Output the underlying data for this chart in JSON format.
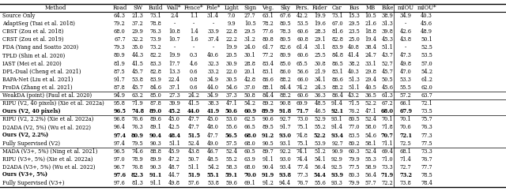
{
  "columns": [
    "Method",
    "Road",
    "SW",
    "Build",
    "Wall*",
    "Fence*",
    "Pole*",
    "Light",
    "Sign",
    "Veg.",
    "Sky",
    "Pers.",
    "Rider",
    "Car",
    "Bus",
    "MB",
    "Bike",
    "mIOU",
    "mIOU*"
  ],
  "rows": [
    [
      "Source Only",
      "64.3",
      "21.3",
      "73.1",
      "2.4",
      "1.1",
      "31.4",
      "7.0",
      "27.7",
      "63.1",
      "67.6",
      "42.2",
      "19.9",
      "73.1",
      "15.3",
      "10.5",
      "38.9",
      "34.9",
      "40.3"
    ],
    [
      "AdaptSeg (Tsai et al. 2018)",
      "79.2",
      "37.2",
      "78.8",
      "-",
      "-",
      "-",
      "9.9",
      "10.5",
      "78.2",
      "80.5",
      "53.5",
      "19.6",
      "67.0",
      "29.5",
      "21.6",
      "31.3",
      "-",
      "45.6"
    ],
    [
      "CBST (Zou et al. 2018)",
      "68.0",
      "29.9",
      "76.3",
      "10.8",
      "1.4",
      "33.9",
      "22.8",
      "29.5",
      "77.6",
      "78.3",
      "60.6",
      "28.3",
      "81.6",
      "23.5",
      "18.8",
      "39.8",
      "42.6",
      "48.9"
    ],
    [
      "CRST (Zou et al. 2019)",
      "67.7",
      "32.2",
      "73.9",
      "10.7",
      "1.6",
      "37.4",
      "22.2",
      "31.2",
      "80.8",
      "80.5",
      "60.8",
      "29.1",
      "82.8",
      "25.0",
      "19.4",
      "45.3",
      "43.8",
      "50.1"
    ],
    [
      "FDA (Yang and Soatto 2020)",
      "79.3",
      "35.0",
      "73.2",
      "-",
      "-",
      "-",
      "19.9",
      "24.0",
      "61.7",
      "82.6",
      "61.4",
      "31.1",
      "83.9",
      "40.8",
      "38.4",
      "51.1",
      "-",
      "52.5"
    ],
    [
      "TPLD (Shin et al. 2020)",
      "80.9",
      "44.3",
      "82.2",
      "19.9",
      "0.3",
      "40.6",
      "20.5",
      "30.1",
      "77.2",
      "80.9",
      "60.6",
      "25.5",
      "84.8",
      "41.4",
      "24.7",
      "43.7",
      "47.3",
      "53.5"
    ],
    [
      "IAST (Mei et al. 2020)",
      "81.9",
      "41.5",
      "83.3",
      "17.7",
      "4.6",
      "32.3",
      "30.9",
      "28.8",
      "83.4",
      "85.0",
      "65.5",
      "30.8",
      "86.5",
      "38.2",
      "33.1",
      "52.7",
      "49.8",
      "57.0"
    ],
    [
      "DPL-Dual (Cheng et al. 2021)",
      "87.5",
      "45.7",
      "82.8",
      "13.3",
      "0.6",
      "33.2",
      "22.0",
      "20.1",
      "83.1",
      "86.0",
      "56.6",
      "21.9",
      "83.1",
      "40.3",
      "29.8",
      "45.7",
      "47.0",
      "54.2"
    ],
    [
      "BAPA-Net (Liu et al. 2021)",
      "91.7",
      "53.8",
      "83.9",
      "22.4",
      "0.8",
      "34.9",
      "30.5",
      "42.8",
      "86.6",
      "88.2",
      "66.0",
      "34.1",
      "86.6",
      "51.3",
      "29.4",
      "50.5",
      "53.3",
      "61.2"
    ],
    [
      "ProDA (Zhang et al. 2021)",
      "87.8",
      "45.7",
      "84.6",
      "37.1",
      "0.6",
      "44.0",
      "54.6",
      "37.0",
      "88.1",
      "84.4",
      "74.2",
      "24.3",
      "88.2",
      "51.1",
      "40.5",
      "45.6",
      "55.5",
      "62.0"
    ],
    [
      "WeakDA (point) (Paul et al. 2020)",
      "94.9",
      "63.2",
      "85.0",
      "27.3",
      "24.2",
      "34.9",
      "37.3",
      "50.8",
      "84.4",
      "88.2",
      "60.6",
      "36.3",
      "86.4",
      "43.2",
      "36.5",
      "61.3",
      "57.2",
      "63.7"
    ],
    [
      "RIPU (V2, 40 pixels) (Xie et al. 2022a)",
      "95.8",
      "71.9",
      "87.8",
      "39.9",
      "41.5",
      "38.3",
      "47.1",
      "54.2",
      "89.2",
      "90.8",
      "69.9",
      "48.5",
      "91.4",
      "71.5",
      "52.2",
      "67.2",
      "66.1",
      "72.1"
    ],
    [
      "Ours (V2, 40 pixels)",
      "96.5",
      "74.8",
      "89.0",
      "45.2",
      "44.0",
      "41.9",
      "50.6",
      "60.9",
      "89.9",
      "91.8",
      "71.7",
      "46.5",
      "92.1",
      "76.2",
      "47.1",
      "68.0",
      "67.9",
      "73.5"
    ],
    [
      "RIPU (V2, 2.2%) (Xie et al. 2022a)",
      "96.8",
      "76.6",
      "89.6",
      "45.0",
      "47.7",
      "45.0",
      "53.0",
      "62.5",
      "90.6",
      "92.7",
      "73.0",
      "52.9",
      "93.1",
      "80.5",
      "52.4",
      "70.1",
      "70.1",
      "75.7"
    ],
    [
      "D2ADA (V2, 5%) (Wu et al. 2022)",
      "96.4",
      "76.3",
      "89.1",
      "42.5",
      "47.7",
      "48.0",
      "55.6",
      "66.5",
      "89.5",
      "91.7",
      "75.1",
      "55.2",
      "91.4",
      "77.0",
      "58.0",
      "71.8",
      "70.6",
      "76.3"
    ],
    [
      "Ours (V2, 2.2%)",
      "97.4",
      "80.9",
      "90.4",
      "48.4",
      "51.5",
      "47.7",
      "56.5",
      "68.0",
      "91.2",
      "93.0",
      "74.8",
      "52.2",
      "93.4",
      "83.5",
      "54.6",
      "70.7",
      "72.1",
      "77.3"
    ],
    [
      "Fully Supervised (V2)",
      "97.4",
      "79.5",
      "90.3",
      "51.1",
      "52.4",
      "49.0",
      "57.5",
      "68.0",
      "90.5",
      "93.1",
      "75.1",
      "53.9",
      "92.7",
      "80.2",
      "58.1",
      "71.1",
      "72.5",
      "77.5"
    ],
    [
      "MADA (V3+, 5%) (Ning et al. 2021)",
      "96.5",
      "74.6",
      "88.8",
      "45.9",
      "43.8",
      "46.7",
      "52.4",
      "60.5",
      "89.7",
      "92.2",
      "74.1",
      "51.2",
      "90.9",
      "60.3",
      "52.4",
      "69.4",
      "68.1",
      "73.3"
    ],
    [
      "RIPU (V3+, 5%) (Xie et al. 2022a)",
      "97.0",
      "78.9",
      "89.9",
      "47.2",
      "50.7",
      "48.5",
      "55.2",
      "63.9",
      "91.1",
      "93.0",
      "74.4",
      "54.1",
      "92.9",
      "79.9",
      "55.3",
      "71.0",
      "71.4",
      "76.7"
    ],
    [
      "D2ADA (V3+, 5%) (Wu et al. 2022)",
      "96.7",
      "76.8",
      "90.3",
      "48.7",
      "51.1",
      "54.2",
      "58.3",
      "68.0",
      "90.4",
      "93.4",
      "77.4",
      "56.4",
      "92.5",
      "77.5",
      "58.9",
      "73.3",
      "72.7",
      "77.7"
    ],
    [
      "Ours (V3+, 5%)",
      "97.6",
      "82.3",
      "91.1",
      "44.7",
      "51.9",
      "55.1",
      "59.1",
      "70.0",
      "91.9",
      "93.8",
      "77.3",
      "54.4",
      "93.9",
      "80.3",
      "56.4",
      "71.9",
      "73.2",
      "78.5"
    ],
    [
      "Fully Supervised (V3+)",
      "97.6",
      "81.3",
      "91.1",
      "49.8",
      "57.6",
      "53.8",
      "59.6",
      "69.1",
      "91.2",
      "94.4",
      "76.7",
      "55.6",
      "93.3",
      "79.9",
      "57.7",
      "72.2",
      "73.8",
      "78.4"
    ]
  ],
  "bold_cells": {
    "12": [
      1,
      2,
      3,
      4,
      5,
      6,
      7,
      8,
      9,
      10,
      11,
      13,
      16,
      17
    ],
    "15": [
      1,
      2,
      3,
      4,
      5,
      7,
      8,
      9,
      10,
      12,
      13,
      16,
      17
    ],
    "20": [
      1,
      2,
      3,
      5,
      6,
      7,
      8,
      9,
      10,
      12,
      13,
      16,
      17
    ]
  },
  "bold_method_rows": [
    12,
    15,
    20
  ],
  "group_separators_above": [
    10,
    11,
    13,
    17
  ],
  "font_size": 4.8,
  "header_font_size": 5.0
}
